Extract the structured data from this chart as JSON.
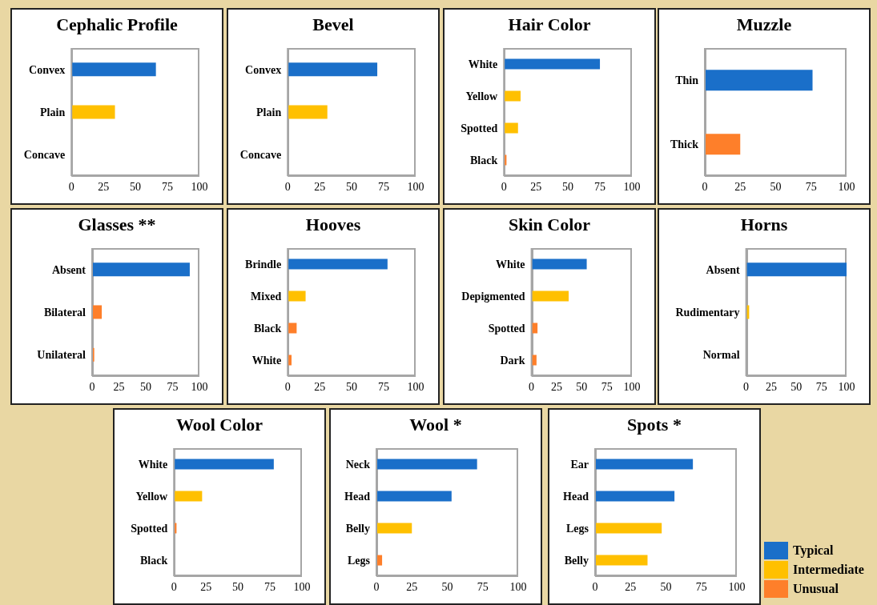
{
  "chart_data": [
    {
      "type": "bar",
      "orientation": "horizontal",
      "stacked": true,
      "title": "Cephalic Profile",
      "categories": [
        "Convex",
        "Plain",
        "Concave"
      ],
      "xlim": [
        0,
        100
      ],
      "xticks": [
        0,
        25,
        50,
        75,
        100
      ],
      "series": [
        {
          "color": "#1a6fc9",
          "values": [
            66,
            null,
            null
          ]
        },
        {
          "color": "#ffc000",
          "values": [
            null,
            34,
            null
          ]
        },
        {
          "color": "#fe7f2a",
          "values": [
            null,
            null,
            0
          ]
        }
      ]
    },
    {
      "type": "bar",
      "orientation": "horizontal",
      "stacked": true,
      "title": "Bevel",
      "categories": [
        "Convex",
        "Plain",
        "Concave"
      ],
      "xlim": [
        0,
        100
      ],
      "xticks": [
        0,
        25,
        50,
        75,
        100
      ],
      "series": [
        {
          "color": "#1a6fc9",
          "values": [
            70,
            null,
            null
          ]
        },
        {
          "color": "#ffc000",
          "values": [
            null,
            31,
            null
          ]
        },
        {
          "color": "#fe7f2a",
          "values": [
            null,
            null,
            0
          ]
        }
      ]
    },
    {
      "type": "bar",
      "orientation": "horizontal",
      "stacked": true,
      "title": "Hair Color",
      "categories": [
        "White",
        "Yellow",
        "Spotted",
        "Black"
      ],
      "xlim": [
        0,
        100
      ],
      "xticks": [
        0,
        25,
        50,
        75,
        100
      ],
      "series": [
        {
          "color": "#1a6fc9",
          "values": [
            75,
            null,
            null,
            null
          ]
        },
        {
          "color": "#ffc000",
          "values": [
            null,
            13,
            11,
            null
          ]
        },
        {
          "color": "#fe7f2a",
          "values": [
            null,
            null,
            null,
            2
          ]
        }
      ]
    },
    {
      "type": "bar",
      "orientation": "horizontal",
      "stacked": true,
      "title": "Muzzle",
      "categories": [
        "Thin",
        "Thick"
      ],
      "xlim": [
        0,
        100
      ],
      "xticks": [
        0,
        25,
        50,
        75,
        100
      ],
      "series": [
        {
          "color": "#1a6fc9",
          "values": [
            76,
            null
          ]
        },
        {
          "color": "#fe7f2a",
          "values": [
            null,
            25
          ]
        }
      ]
    },
    {
      "type": "bar",
      "orientation": "horizontal",
      "stacked": true,
      "title": "Glasses **",
      "categories": [
        "Absent",
        "Bilateral",
        "Unilateral"
      ],
      "xlim": [
        0,
        100
      ],
      "xticks": [
        0,
        25,
        50,
        75,
        100
      ],
      "series": [
        {
          "color": "#1a6fc9",
          "values": [
            91,
            null,
            null
          ]
        },
        {
          "color": "#fe7f2a",
          "values": [
            null,
            9,
            2
          ]
        }
      ]
    },
    {
      "type": "bar",
      "orientation": "horizontal",
      "stacked": true,
      "title": "Hooves",
      "categories": [
        "Brindle",
        "Mixed",
        "Black",
        "White"
      ],
      "xlim": [
        0,
        100
      ],
      "xticks": [
        0,
        25,
        50,
        75,
        100
      ],
      "series": [
        {
          "color": "#1a6fc9",
          "values": [
            78,
            null,
            null,
            null
          ]
        },
        {
          "color": "#ffc000",
          "values": [
            null,
            14,
            null,
            null
          ]
        },
        {
          "color": "#fe7f2a",
          "values": [
            null,
            null,
            7,
            3
          ]
        }
      ]
    },
    {
      "type": "bar",
      "orientation": "horizontal",
      "stacked": true,
      "title": "Skin Color",
      "categories": [
        "White",
        "Depigmented",
        "Spotted",
        "Dark"
      ],
      "xlim": [
        0,
        100
      ],
      "xticks": [
        0,
        25,
        50,
        75,
        100
      ],
      "series": [
        {
          "color": "#1a6fc9",
          "values": [
            55,
            null,
            null,
            null
          ]
        },
        {
          "color": "#ffc000",
          "values": [
            null,
            37,
            null,
            null
          ]
        },
        {
          "color": "#fe7f2a",
          "values": [
            null,
            null,
            6,
            5
          ]
        }
      ]
    },
    {
      "type": "bar",
      "orientation": "horizontal",
      "stacked": true,
      "title": "Horns",
      "categories": [
        "Absent",
        "Rudimentary",
        "Normal"
      ],
      "xlim": [
        0,
        100
      ],
      "xticks": [
        0,
        25,
        50,
        75,
        100
      ],
      "series": [
        {
          "color": "#1a6fc9",
          "values": [
            100,
            null,
            null
          ]
        },
        {
          "color": "#ffc000",
          "values": [
            null,
            3,
            null
          ]
        },
        {
          "color": "#fe7f2a",
          "values": [
            null,
            null,
            0
          ]
        }
      ]
    },
    {
      "type": "bar",
      "orientation": "horizontal",
      "stacked": true,
      "title": "Wool Color",
      "categories": [
        "White",
        "Yellow",
        "Spotted",
        "Black"
      ],
      "xlim": [
        0,
        100
      ],
      "xticks": [
        0,
        25,
        50,
        75,
        100
      ],
      "series": [
        {
          "color": "#1a6fc9",
          "values": [
            78,
            null,
            null,
            null
          ]
        },
        {
          "color": "#ffc000",
          "values": [
            null,
            22,
            null,
            null
          ]
        },
        {
          "color": "#fe7f2a",
          "values": [
            null,
            null,
            2,
            0
          ]
        }
      ]
    },
    {
      "type": "bar",
      "orientation": "horizontal",
      "stacked": true,
      "title": "Wool *",
      "categories": [
        "Neck",
        "Head",
        "Belly",
        "Legs"
      ],
      "xlim": [
        0,
        100
      ],
      "xticks": [
        0,
        25,
        50,
        75,
        100
      ],
      "series": [
        {
          "color": "#1a6fc9",
          "values": [
            71,
            53,
            null,
            null
          ]
        },
        {
          "color": "#ffc000",
          "values": [
            null,
            null,
            25,
            null
          ]
        },
        {
          "color": "#fe7f2a",
          "values": [
            null,
            null,
            null,
            4
          ]
        }
      ]
    },
    {
      "type": "bar",
      "orientation": "horizontal",
      "stacked": true,
      "title": "Spots *",
      "categories": [
        "Ear",
        "Head",
        "Legs",
        "Belly"
      ],
      "xlim": [
        0,
        100
      ],
      "xticks": [
        0,
        25,
        50,
        75,
        100
      ],
      "legend": "right",
      "series": [
        {
          "name": "Typical",
          "color": "#1a6fc9",
          "values": [
            69,
            56,
            null,
            null
          ]
        },
        {
          "name": "Intermediate",
          "color": "#ffc000",
          "values": [
            null,
            null,
            47,
            37
          ]
        },
        {
          "name": "Unusual",
          "color": "#fe7f2a",
          "values": [
            null,
            null,
            null,
            null
          ]
        }
      ]
    }
  ]
}
